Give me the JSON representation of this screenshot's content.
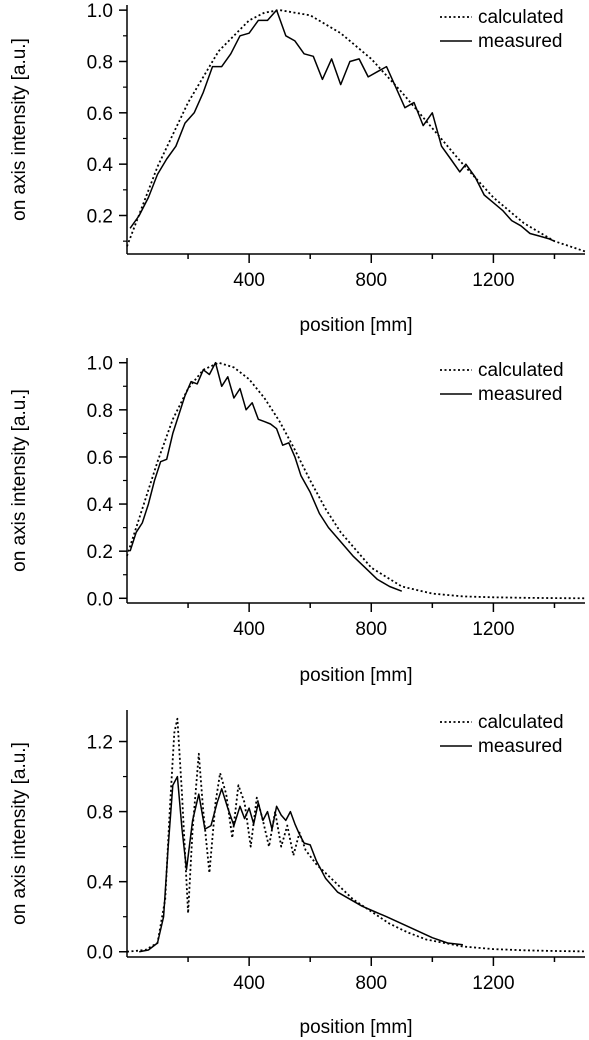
{
  "chart_data": [
    {
      "type": "line",
      "xlabel": "position [mm]",
      "ylabel": "on axis intensity [a.u.]",
      "xlim": [
        0,
        1500
      ],
      "ylim": [
        0.05,
        1.02
      ],
      "xticks": [
        400,
        800,
        1200
      ],
      "xtick_labels": [
        "400",
        "800",
        "1200"
      ],
      "yticks": [
        0.2,
        0.4,
        0.6,
        0.8,
        1.0
      ],
      "ytick_labels": [
        "0.2",
        "0.4",
        "0.6",
        "0.8",
        "1.0"
      ],
      "legend": "top-right",
      "series": [
        {
          "name": "calculated",
          "style": "dotted",
          "x": [
            0,
            100,
            200,
            300,
            400,
            450,
            500,
            550,
            600,
            700,
            800,
            900,
            1000,
            1100,
            1200,
            1300,
            1400,
            1500
          ],
          "y": [
            0.08,
            0.39,
            0.64,
            0.84,
            0.96,
            0.99,
            1.0,
            0.99,
            0.98,
            0.91,
            0.81,
            0.68,
            0.54,
            0.4,
            0.27,
            0.17,
            0.1,
            0.06
          ]
        },
        {
          "name": "measured",
          "style": "solid",
          "x": [
            10,
            40,
            70,
            100,
            130,
            160,
            190,
            220,
            250,
            280,
            310,
            340,
            370,
            400,
            430,
            460,
            490,
            520,
            550,
            580,
            610,
            640,
            670,
            700,
            730,
            760,
            790,
            820,
            850,
            880,
            910,
            940,
            970,
            1000,
            1030,
            1060,
            1090,
            1110,
            1140,
            1170,
            1200,
            1230,
            1260,
            1290,
            1320,
            1350,
            1380,
            1400
          ],
          "y": [
            0.15,
            0.2,
            0.27,
            0.36,
            0.42,
            0.47,
            0.56,
            0.6,
            0.68,
            0.78,
            0.78,
            0.83,
            0.9,
            0.91,
            0.96,
            0.96,
            1.0,
            0.9,
            0.88,
            0.83,
            0.82,
            0.73,
            0.81,
            0.71,
            0.8,
            0.81,
            0.74,
            0.76,
            0.78,
            0.7,
            0.62,
            0.64,
            0.55,
            0.6,
            0.47,
            0.42,
            0.37,
            0.4,
            0.35,
            0.28,
            0.25,
            0.22,
            0.18,
            0.16,
            0.13,
            0.12,
            0.11,
            0.1
          ]
        }
      ]
    },
    {
      "type": "line",
      "xlabel": "position [mm]",
      "ylabel": "on axis intensity [a.u.]",
      "xlim": [
        0,
        1500
      ],
      "ylim": [
        -0.02,
        1.02
      ],
      "xticks": [
        400,
        800,
        1200
      ],
      "xtick_labels": [
        "400",
        "800",
        "1200"
      ],
      "yticks": [
        0.0,
        0.2,
        0.4,
        0.6,
        0.8,
        1.0
      ],
      "ytick_labels": [
        "0.0",
        "0.2",
        "0.4",
        "0.6",
        "0.8",
        "1.0"
      ],
      "legend": "top-right",
      "series": [
        {
          "name": "calculated",
          "style": "dotted",
          "x": [
            0,
            50,
            100,
            150,
            200,
            250,
            300,
            350,
            400,
            450,
            500,
            550,
            600,
            650,
            700,
            800,
            900,
            1000,
            1100,
            1200,
            1300,
            1400,
            1500
          ],
          "y": [
            0.18,
            0.38,
            0.58,
            0.76,
            0.89,
            0.97,
            1.0,
            0.98,
            0.93,
            0.85,
            0.75,
            0.63,
            0.5,
            0.38,
            0.28,
            0.13,
            0.05,
            0.02,
            0.008,
            0.004,
            0.002,
            0.001,
            0.0
          ]
        },
        {
          "name": "measured",
          "style": "solid",
          "x": [
            10,
            30,
            50,
            70,
            90,
            110,
            130,
            150,
            170,
            190,
            210,
            230,
            250,
            270,
            290,
            310,
            330,
            350,
            370,
            390,
            410,
            430,
            450,
            470,
            490,
            510,
            530,
            550,
            570,
            600,
            630,
            660,
            700,
            740,
            780,
            820,
            860,
            900
          ],
          "y": [
            0.2,
            0.28,
            0.32,
            0.4,
            0.5,
            0.58,
            0.59,
            0.7,
            0.78,
            0.86,
            0.92,
            0.91,
            0.97,
            0.95,
            1.0,
            0.9,
            0.94,
            0.85,
            0.89,
            0.8,
            0.83,
            0.76,
            0.75,
            0.74,
            0.72,
            0.65,
            0.66,
            0.6,
            0.52,
            0.45,
            0.36,
            0.3,
            0.24,
            0.18,
            0.13,
            0.08,
            0.05,
            0.03
          ]
        }
      ]
    },
    {
      "type": "line",
      "xlabel": "position [mm]",
      "ylabel": "on axis intensity [a.u.]",
      "xlim": [
        0,
        1500
      ],
      "ylim": [
        -0.03,
        1.38
      ],
      "xticks": [
        400,
        800,
        1200
      ],
      "xtick_labels": [
        "400",
        "800",
        "1200"
      ],
      "yticks": [
        0.0,
        0.4,
        0.8,
        1.2
      ],
      "ytick_labels": [
        "0.0",
        "0.4",
        "0.8",
        "1.2"
      ],
      "legend": "top-right",
      "series": [
        {
          "name": "calculated",
          "style": "dotted",
          "x": [
            0,
            60,
            100,
            125,
            140,
            155,
            165,
            180,
            200,
            215,
            235,
            250,
            270,
            290,
            305,
            325,
            345,
            365,
            385,
            405,
            425,
            445,
            465,
            485,
            505,
            525,
            545,
            565,
            585,
            620,
            680,
            740,
            800,
            860,
            920,
            980,
            1040,
            1100,
            1200,
            1300,
            1400,
            1500
          ],
          "y": [
            0.0,
            0.01,
            0.05,
            0.3,
            0.8,
            1.25,
            1.33,
            0.9,
            0.22,
            0.7,
            1.13,
            0.8,
            0.45,
            0.85,
            1.02,
            0.9,
            0.65,
            0.95,
            0.85,
            0.6,
            0.88,
            0.75,
            0.6,
            0.8,
            0.6,
            0.72,
            0.55,
            0.68,
            0.58,
            0.5,
            0.4,
            0.3,
            0.23,
            0.16,
            0.11,
            0.07,
            0.05,
            0.03,
            0.015,
            0.008,
            0.004,
            0.002
          ]
        },
        {
          "name": "measured",
          "style": "solid",
          "x": [
            40,
            70,
            100,
            120,
            135,
            150,
            165,
            180,
            195,
            215,
            235,
            255,
            275,
            295,
            310,
            330,
            350,
            370,
            385,
            400,
            415,
            430,
            445,
            460,
            475,
            490,
            505,
            520,
            535,
            550,
            565,
            580,
            600,
            620,
            650,
            690,
            730,
            770,
            810,
            850,
            900,
            950,
            1000,
            1050,
            1100
          ],
          "y": [
            0.0,
            0.01,
            0.05,
            0.2,
            0.6,
            0.95,
            1.0,
            0.7,
            0.47,
            0.75,
            0.9,
            0.7,
            0.72,
            0.85,
            0.93,
            0.82,
            0.72,
            0.83,
            0.76,
            0.82,
            0.73,
            0.85,
            0.75,
            0.8,
            0.7,
            0.83,
            0.78,
            0.75,
            0.8,
            0.73,
            0.67,
            0.62,
            0.61,
            0.52,
            0.42,
            0.34,
            0.3,
            0.26,
            0.23,
            0.2,
            0.16,
            0.12,
            0.08,
            0.05,
            0.04
          ]
        }
      ]
    }
  ]
}
